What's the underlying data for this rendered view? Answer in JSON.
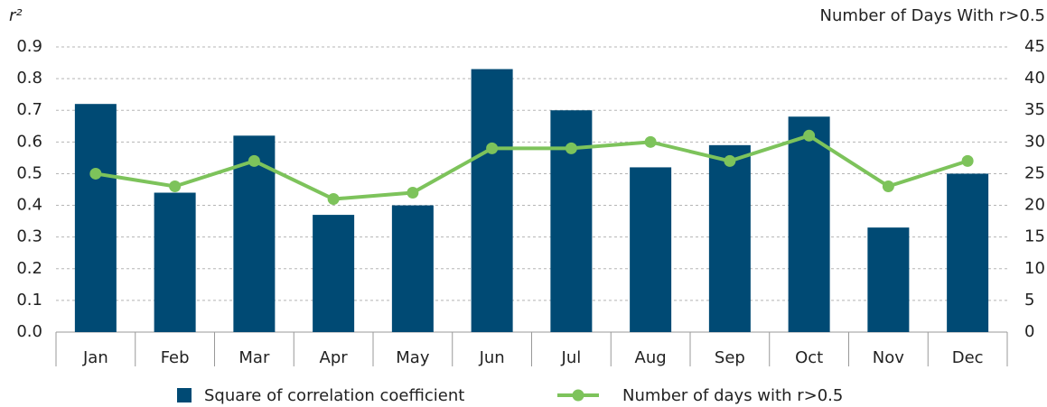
{
  "chart_data": {
    "type": "bar_line",
    "y_label": "r²",
    "y2_label": "Number of Days With r>0.5",
    "categories": [
      "Jan",
      "Feb",
      "Mar",
      "Apr",
      "May",
      "Jun",
      "Jul",
      "Aug",
      "Sep",
      "Oct",
      "Nov",
      "Dec"
    ],
    "series": [
      {
        "name": "Square of correlation coefficient",
        "type": "bar",
        "color": "#004a74",
        "values": [
          0.72,
          0.44,
          0.62,
          0.37,
          0.4,
          0.83,
          0.7,
          0.52,
          0.59,
          0.68,
          0.33,
          0.5
        ]
      },
      {
        "name": "Number of days with r>0.5",
        "type": "line",
        "axis": "y2",
        "color": "#7dc35b",
        "values": [
          25,
          23,
          27,
          21,
          22,
          29,
          29,
          30,
          27,
          31,
          23,
          27
        ]
      }
    ],
    "ylim": [
      0,
      0.9
    ],
    "yticks": [
      {
        "value": 0,
        "label": "0.0"
      },
      0.1,
      0.2,
      0.3,
      0.4,
      0.5,
      0.6,
      0.7,
      0.8,
      0.9
    ],
    "y2lim": [
      0,
      45
    ],
    "y2ticks": [
      0,
      5,
      10,
      15,
      20,
      25,
      30,
      35,
      40,
      45
    ],
    "grid": true
  }
}
